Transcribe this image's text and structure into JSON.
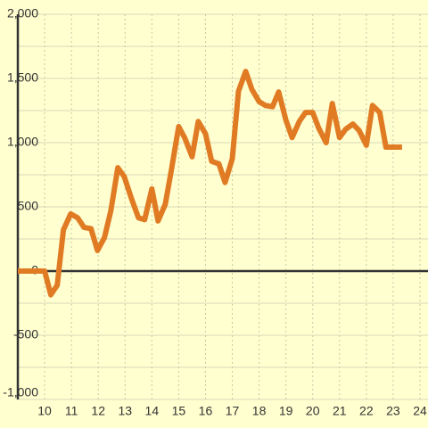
{
  "chart_data": {
    "type": "line",
    "x": [
      9,
      10,
      10.23,
      10.47,
      10.7,
      10.97,
      11.23,
      11.47,
      11.73,
      11.97,
      12.23,
      12.47,
      12.73,
      12.97,
      13.23,
      13.5,
      13.73,
      14,
      14.23,
      14.5,
      14.73,
      15,
      15.23,
      15.5,
      15.73,
      16,
      16.23,
      16.5,
      16.73,
      17,
      17.23,
      17.5,
      17.73,
      18,
      18.23,
      18.5,
      18.73,
      19,
      19.23,
      19.5,
      19.73,
      20,
      20.23,
      20.5,
      20.73,
      21,
      21.23,
      21.5,
      21.73,
      22,
      22.23,
      22.5,
      22.73,
      23,
      23.33
    ],
    "series": [
      {
        "color": "#e07b24",
        "values": [
          0,
          0,
          -185,
          -110,
          320,
          445,
          415,
          340,
          330,
          160,
          260,
          470,
          805,
          735,
          570,
          415,
          400,
          640,
          390,
          520,
          790,
          1125,
          1035,
          890,
          1165,
          1070,
          855,
          835,
          690,
          875,
          1400,
          1555,
          1415,
          1320,
          1290,
          1280,
          1395,
          1175,
          1040,
          1165,
          1235,
          1235,
          1110,
          1000,
          1305,
          1040,
          1105,
          1145,
          1095,
          980,
          1290,
          1235,
          965,
          965,
          965
        ]
      }
    ],
    "xlim": [
      9,
      24.3
    ],
    "xticks": [
      10,
      11,
      12,
      13,
      14,
      15,
      16,
      17,
      18,
      19,
      20,
      21,
      22,
      23,
      24
    ],
    "ylim": [
      -1000,
      2000
    ],
    "yticks": [
      {
        "value": -1000,
        "label": "-1,000"
      },
      -500,
      0,
      500,
      {
        "value": 1000,
        "label": "1,000"
      },
      {
        "value": 1500,
        "label": "1,500"
      },
      {
        "value": 2000,
        "label": "2,000"
      }
    ],
    "yminorticks": [
      -750,
      -250,
      250,
      750,
      1250,
      1750
    ],
    "grid": true
  }
}
